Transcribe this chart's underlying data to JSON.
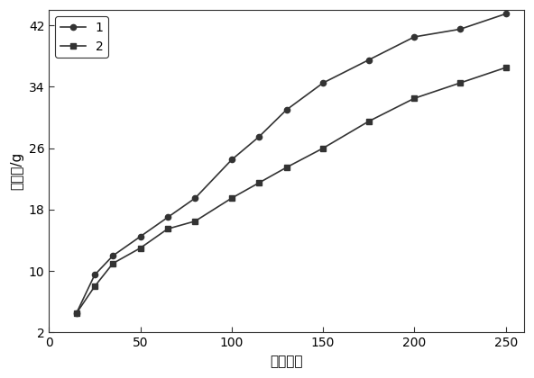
{
  "series1_x": [
    15,
    25,
    35,
    50,
    65,
    80,
    100,
    115,
    130,
    150,
    175,
    200,
    225,
    250
  ],
  "series1_y": [
    4.5,
    9.5,
    12.0,
    14.5,
    17.0,
    19.5,
    24.5,
    27.5,
    31.0,
    34.5,
    37.5,
    40.5,
    41.5,
    43.5
  ],
  "series2_x": [
    15,
    25,
    35,
    50,
    65,
    80,
    100,
    115,
    130,
    150,
    175,
    200,
    225,
    250
  ],
  "series2_y": [
    4.5,
    8.0,
    11.0,
    13.0,
    15.5,
    16.5,
    19.5,
    21.5,
    23.5,
    26.0,
    29.5,
    32.5,
    34.5,
    36.5
  ],
  "xlabel": "循环次数",
  "ylabel": "失水量/g",
  "legend1": "1",
  "legend2": "2",
  "xticks": [
    0,
    50,
    100,
    150,
    200,
    250
  ],
  "yticks": [
    2,
    10,
    18,
    26,
    34,
    42
  ],
  "xlim": [
    0,
    260
  ],
  "ylim": [
    2,
    44
  ],
  "line_color": "#333333",
  "bg_color": "#ffffff",
  "marker1": "o",
  "marker2": "s",
  "markersize": 4.5,
  "linewidth": 1.2
}
